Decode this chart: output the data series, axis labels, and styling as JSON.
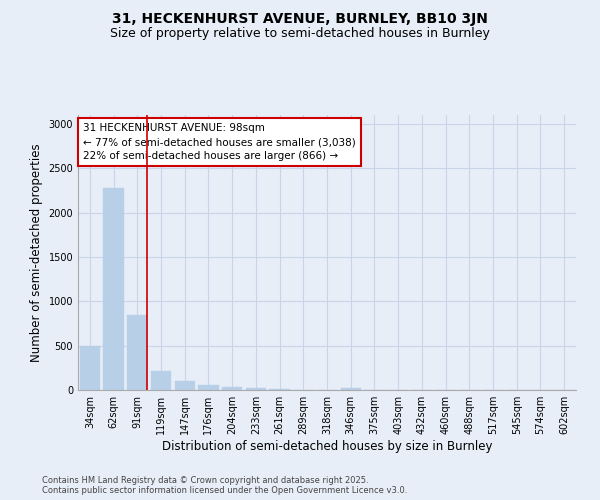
{
  "title_line1": "31, HECKENHURST AVENUE, BURNLEY, BB10 3JN",
  "title_line2": "Size of property relative to semi-detached houses in Burnley",
  "xlabel": "Distribution of semi-detached houses by size in Burnley",
  "ylabel": "Number of semi-detached properties",
  "categories": [
    "34sqm",
    "62sqm",
    "91sqm",
    "119sqm",
    "147sqm",
    "176sqm",
    "204sqm",
    "233sqm",
    "261sqm",
    "289sqm",
    "318sqm",
    "346sqm",
    "375sqm",
    "403sqm",
    "432sqm",
    "460sqm",
    "488sqm",
    "517sqm",
    "545sqm",
    "574sqm",
    "602sqm"
  ],
  "values": [
    500,
    2280,
    840,
    210,
    100,
    55,
    30,
    18,
    10,
    5,
    0,
    25,
    0,
    0,
    0,
    0,
    0,
    0,
    0,
    0,
    0
  ],
  "bar_color": "#b8cfe8",
  "bar_edge_color": "#b8cfe8",
  "property_line_color": "#cc0000",
  "property_bar_index": 2,
  "annotation_line1": "31 HECKENHURST AVENUE: 98sqm",
  "annotation_line2": "← 77% of semi-detached houses are smaller (3,038)",
  "annotation_line3": "22% of semi-detached houses are larger (866) →",
  "annotation_box_edgecolor": "#cc0000",
  "annotation_box_facecolor": "#ffffff",
  "ylim": [
    0,
    3100
  ],
  "yticks": [
    0,
    500,
    1000,
    1500,
    2000,
    2500,
    3000
  ],
  "grid_color": "#c8d4e8",
  "background_color": "#e8eef8",
  "plot_bg_color": "#e8eef8",
  "footnote_line1": "Contains HM Land Registry data © Crown copyright and database right 2025.",
  "footnote_line2": "Contains public sector information licensed under the Open Government Licence v3.0.",
  "title_fontsize": 10,
  "subtitle_fontsize": 9,
  "axis_label_fontsize": 8.5,
  "tick_fontsize": 7,
  "annotation_fontsize": 7.5,
  "footnote_fontsize": 6
}
